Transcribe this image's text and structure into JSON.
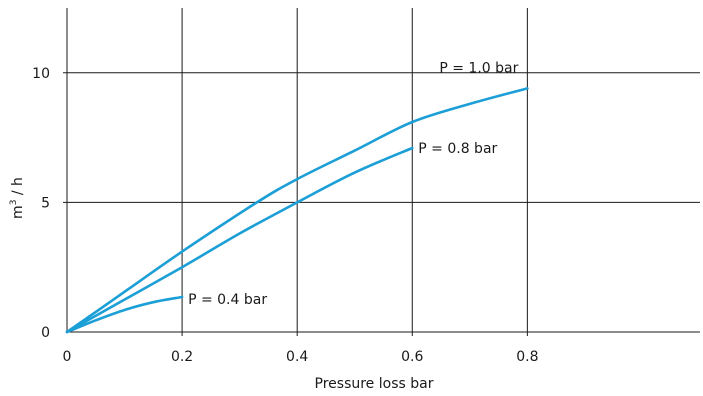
{
  "chart_data": {
    "type": "line",
    "title": "",
    "xlabel": "Pressure loss bar",
    "ylabel_base": "m",
    "ylabel_sup": "3",
    "ylabel_rest": " / h",
    "xlim": [
      0,
      1.1
    ],
    "ylim": [
      0,
      12.5
    ],
    "x_ticks": [
      0,
      0.2,
      0.4,
      0.6,
      0.8
    ],
    "x_tick_labels": [
      "0",
      "0.2",
      "0.4",
      "0.6",
      "0.8"
    ],
    "y_ticks": [
      0,
      5,
      10
    ],
    "y_tick_labels": [
      "0",
      "5",
      "10"
    ],
    "grid": true,
    "line_color": "#1b9fd6",
    "series": [
      {
        "name": "P = 1.0 bar",
        "x": [
          0,
          0.1,
          0.2,
          0.33,
          0.4,
          0.5,
          0.6,
          0.7,
          0.8
        ],
        "y": [
          0,
          1.55,
          3.1,
          5.0,
          5.9,
          7.0,
          8.1,
          8.8,
          9.4
        ]
      },
      {
        "name": "P = 0.8 bar",
        "x": [
          0,
          0.1,
          0.2,
          0.3,
          0.4,
          0.5,
          0.6
        ],
        "y": [
          0,
          1.25,
          2.5,
          3.8,
          5.0,
          6.15,
          7.1
        ]
      },
      {
        "name": "P = 0.4 bar",
        "x": [
          0,
          0.05,
          0.1,
          0.15,
          0.2
        ],
        "y": [
          0,
          0.45,
          0.85,
          1.15,
          1.35
        ]
      }
    ]
  }
}
